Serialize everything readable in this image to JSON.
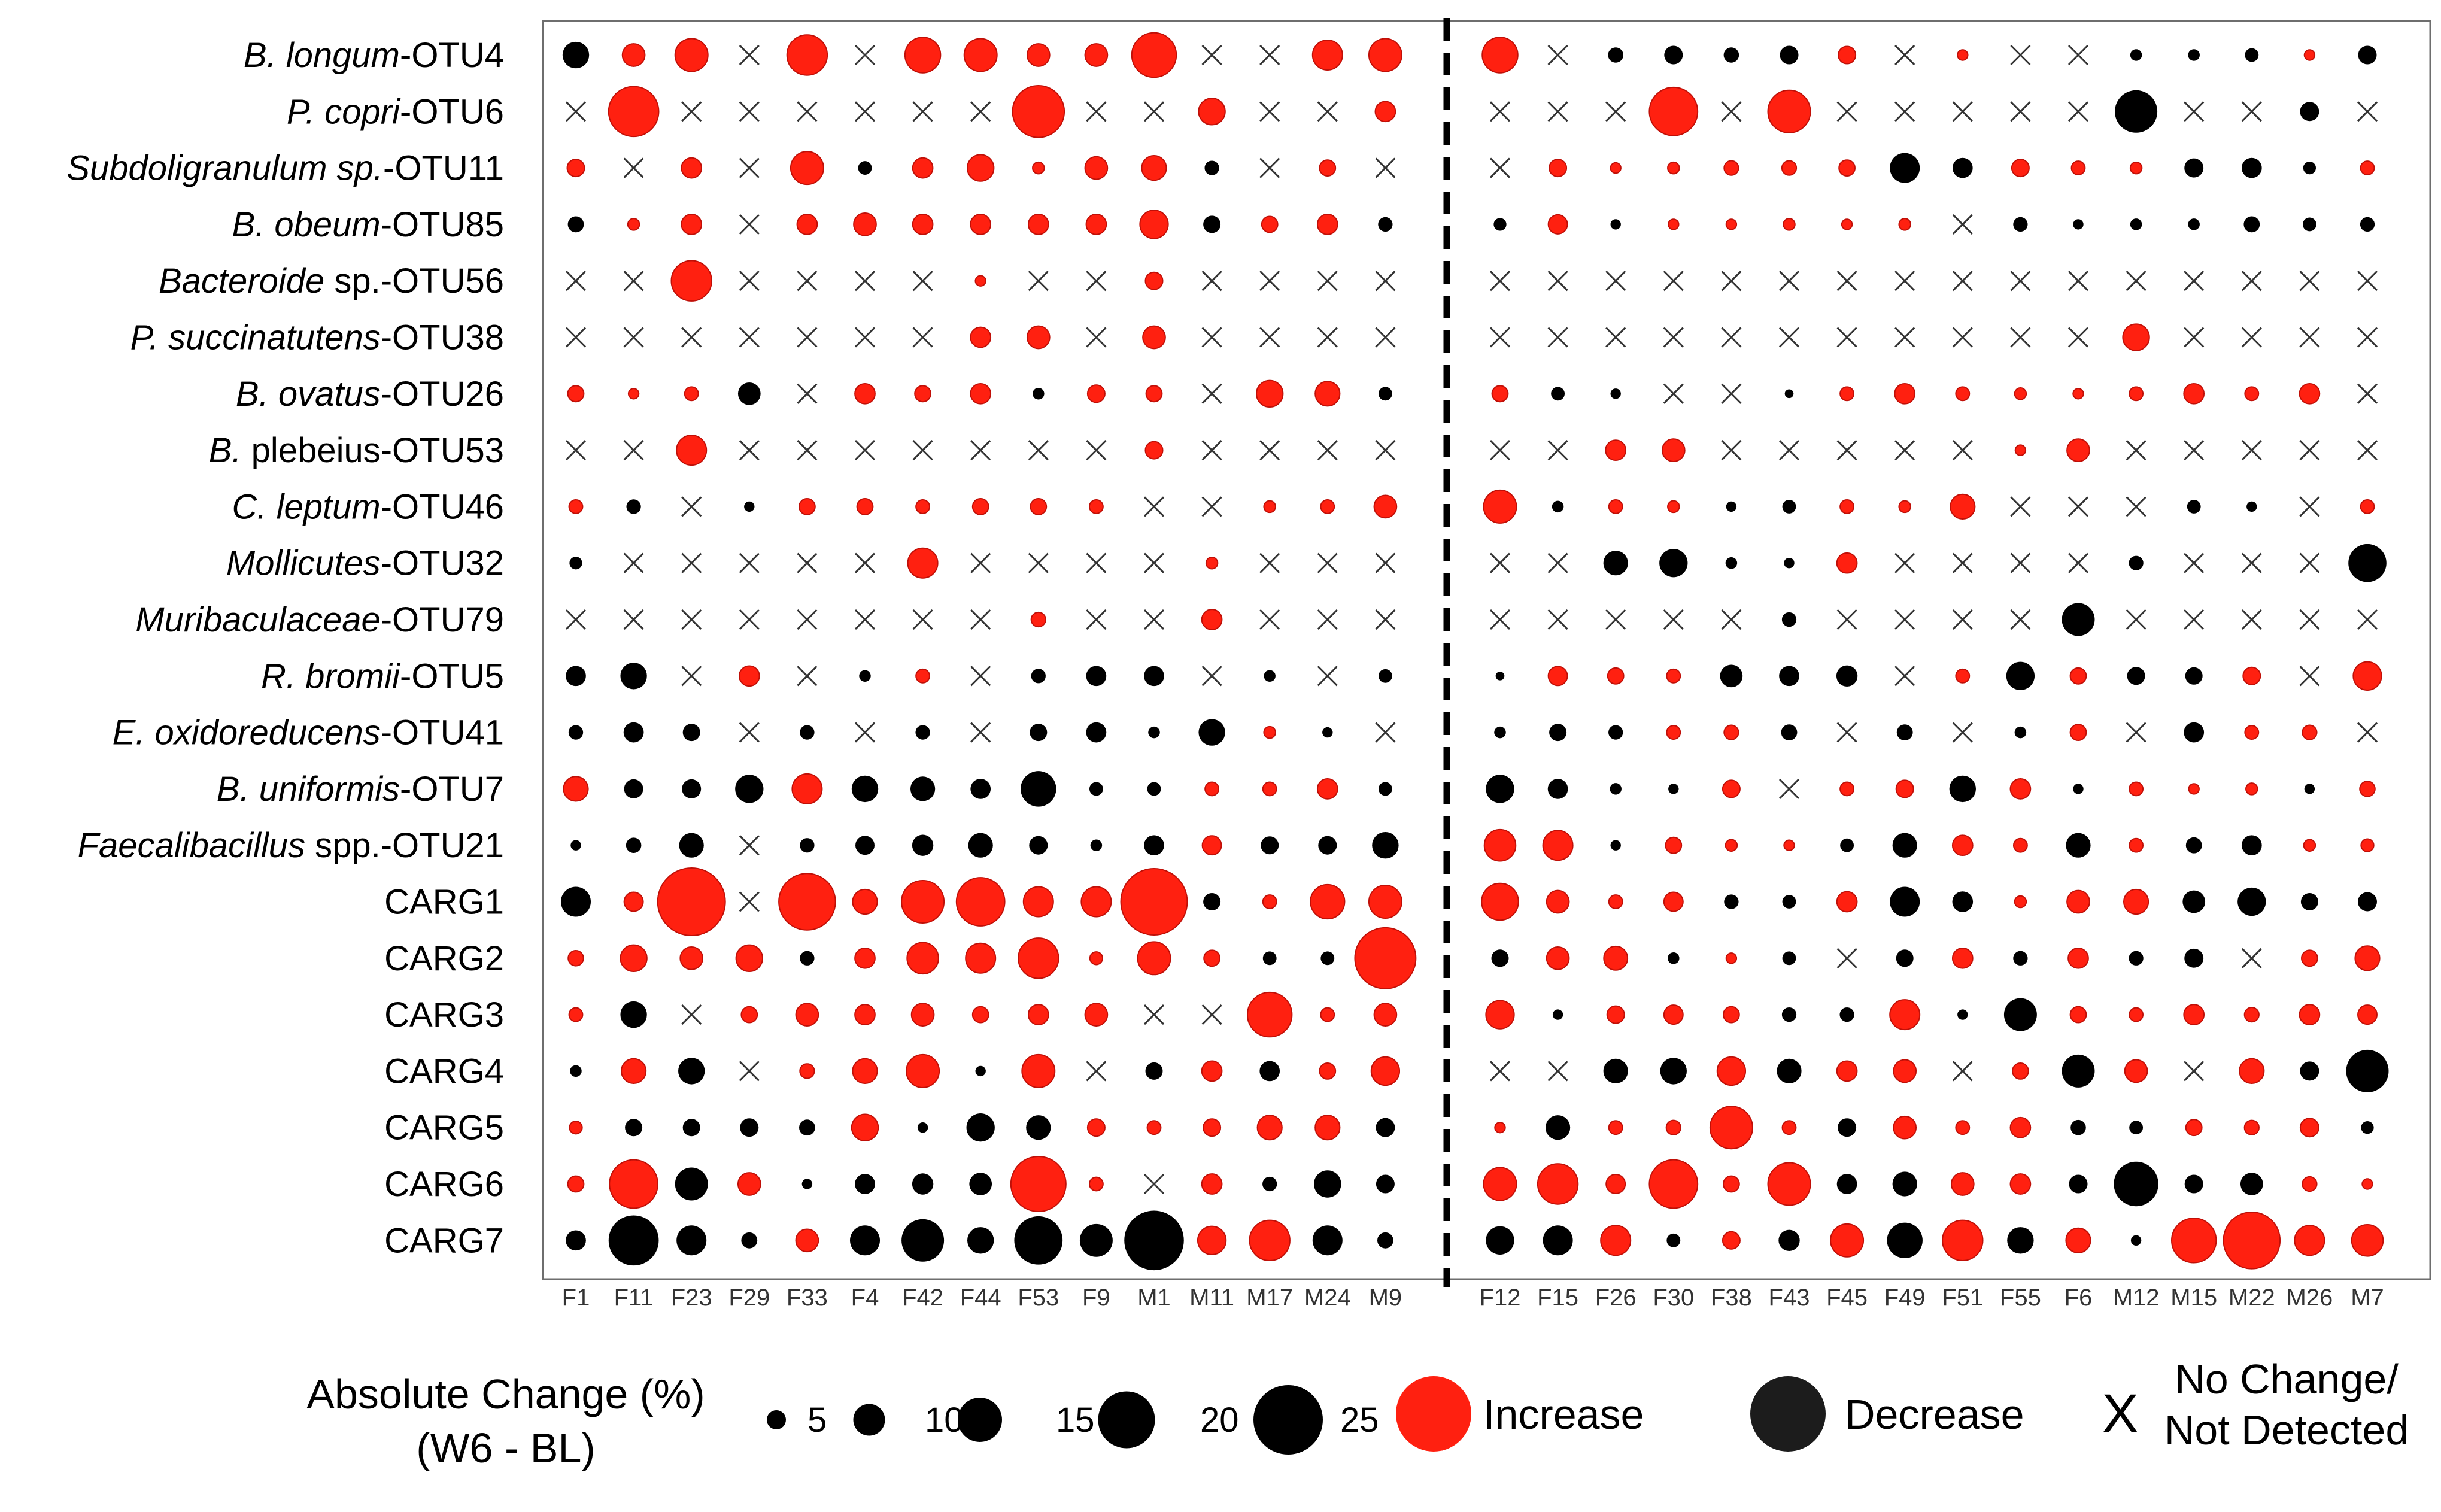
{
  "chart_data": {
    "type": "bubble-matrix",
    "rows": [
      {
        "parts": [
          {
            "t": "B. longum",
            "i": true
          },
          {
            "t": "-OTU4",
            "i": false
          }
        ]
      },
      {
        "parts": [
          {
            "t": "P. copri",
            "i": true
          },
          {
            "t": "-OTU6",
            "i": false
          }
        ]
      },
      {
        "parts": [
          {
            "t": "Subdoligranulum sp.",
            "i": true
          },
          {
            "t": "-OTU11",
            "i": false
          }
        ]
      },
      {
        "parts": [
          {
            "t": "B. obeum",
            "i": true
          },
          {
            "t": "-OTU85",
            "i": false
          }
        ]
      },
      {
        "parts": [
          {
            "t": "Bacteroide",
            "i": true
          },
          {
            "t": " sp.-OTU56",
            "i": false
          }
        ]
      },
      {
        "parts": [
          {
            "t": "P. succinatutens",
            "i": true
          },
          {
            "t": "-OTU38",
            "i": false
          }
        ]
      },
      {
        "parts": [
          {
            "t": "B. ovatus",
            "i": true
          },
          {
            "t": "-OTU26",
            "i": false
          }
        ]
      },
      {
        "parts": [
          {
            "t": "B.",
            "i": true
          },
          {
            "t": " plebeius-OTU53",
            "i": false
          }
        ]
      },
      {
        "parts": [
          {
            "t": "C. leptum",
            "i": true
          },
          {
            "t": "-OTU46",
            "i": false
          }
        ]
      },
      {
        "parts": [
          {
            "t": "Mollicutes",
            "i": true
          },
          {
            "t": "-OTU32",
            "i": false
          }
        ]
      },
      {
        "parts": [
          {
            "t": "Muribaculaceae",
            "i": true
          },
          {
            "t": "-OTU79",
            "i": false
          }
        ]
      },
      {
        "parts": [
          {
            "t": "R. bromii",
            "i": true
          },
          {
            "t": "-OTU5",
            "i": false
          }
        ]
      },
      {
        "parts": [
          {
            "t": "E. oxidoreducens",
            "i": true
          },
          {
            "t": "-OTU41",
            "i": false
          }
        ]
      },
      {
        "parts": [
          {
            "t": "B. uniformis",
            "i": true
          },
          {
            "t": "-OTU7",
            "i": false
          }
        ]
      },
      {
        "parts": [
          {
            "t": "Faecalibacillus",
            "i": true
          },
          {
            "t": " spp.-OTU21",
            "i": false
          }
        ]
      },
      {
        "parts": [
          {
            "t": "CARG1",
            "i": false
          }
        ]
      },
      {
        "parts": [
          {
            "t": "CARG2",
            "i": false
          }
        ]
      },
      {
        "parts": [
          {
            "t": "CARG3",
            "i": false
          }
        ]
      },
      {
        "parts": [
          {
            "t": "CARG4",
            "i": false
          }
        ]
      },
      {
        "parts": [
          {
            "t": "CARG5",
            "i": false
          }
        ]
      },
      {
        "parts": [
          {
            "t": "CARG6",
            "i": false
          }
        ]
      },
      {
        "parts": [
          {
            "t": "CARG7",
            "i": false
          }
        ]
      }
    ],
    "columns_group1": [
      "F1",
      "F11",
      "F23",
      "F29",
      "F33",
      "F4",
      "F42",
      "F44",
      "F53",
      "F9",
      "M1",
      "M11",
      "M17",
      "M24",
      "M9"
    ],
    "columns_group2": [
      "F12",
      "F15",
      "F26",
      "F30",
      "F38",
      "F43",
      "F45",
      "F49",
      "F51",
      "F55",
      "F6",
      "M12",
      "M15",
      "M22",
      "M26",
      "M7"
    ],
    "value_encoding": "positive = increase (red), negative = decrease (black), null = no change / not detected (X); magnitude = absolute change in percentage points",
    "values_group1": [
      [
        -3,
        2,
        5,
        null,
        8,
        null,
        6,
        5,
        2,
        2,
        10,
        null,
        null,
        4,
        5
      ],
      [
        null,
        13,
        null,
        null,
        null,
        null,
        null,
        null,
        14,
        null,
        null,
        3,
        null,
        null,
        1.5
      ],
      [
        1,
        null,
        1.5,
        null,
        5,
        -0.5,
        1.5,
        3,
        0.3,
        2,
        2.5,
        -0.6,
        null,
        0.8,
        null
      ],
      [
        -0.8,
        0.3,
        1.5,
        null,
        1.5,
        2,
        1.5,
        1.5,
        1.5,
        1.5,
        3.5,
        -1,
        0.8,
        1.5,
        -0.6
      ],
      [
        null,
        null,
        8,
        null,
        null,
        null,
        null,
        0.2,
        null,
        null,
        1,
        null,
        null,
        null,
        null
      ],
      [
        null,
        null,
        null,
        null,
        null,
        null,
        null,
        1.5,
        2,
        null,
        2,
        null,
        null,
        null,
        null
      ],
      [
        0.8,
        0.2,
        0.5,
        -2,
        null,
        1.5,
        0.8,
        1.5,
        -0.3,
        1,
        0.8,
        null,
        3,
        2.5,
        -0.5
      ],
      [
        null,
        null,
        4,
        null,
        null,
        null,
        null,
        null,
        null,
        null,
        1,
        null,
        null,
        null,
        null
      ],
      [
        0.5,
        -0.6,
        null,
        -0.2,
        0.8,
        0.8,
        0.5,
        0.8,
        0.8,
        0.5,
        null,
        null,
        0.3,
        0.5,
        2
      ],
      [
        -0.4,
        null,
        null,
        null,
        null,
        null,
        4,
        null,
        null,
        null,
        null,
        0.3,
        null,
        null,
        null
      ],
      [
        null,
        null,
        null,
        null,
        null,
        null,
        null,
        null,
        0.6,
        null,
        null,
        1.5,
        null,
        null,
        null
      ],
      [
        -1.5,
        -3,
        null,
        1.5,
        null,
        -0.3,
        0.5,
        null,
        -0.6,
        -1.5,
        -1.5,
        null,
        -0.3,
        null,
        -0.5
      ],
      [
        -0.6,
        -1.5,
        -1,
        null,
        -0.6,
        null,
        -0.6,
        null,
        -1,
        -1.5,
        -0.3,
        -3,
        0.3,
        -0.2,
        null
      ],
      [
        2.5,
        -1.3,
        -1.3,
        -3.5,
        4,
        -3,
        -2.5,
        -1.5,
        -6,
        -0.5,
        -0.5,
        0.5,
        0.5,
        1.5,
        -0.5
      ],
      [
        -0.2,
        -0.7,
        -2.5,
        null,
        -0.6,
        -1.3,
        -1.7,
        -2.5,
        -1.2,
        -0.3,
        -1.5,
        1.3,
        -1.1,
        -1.2,
        -3
      ],
      [
        -4,
        1.3,
        25,
        null,
        17,
        2.5,
        9,
        12,
        4,
        4,
        24,
        -1,
        0.5,
        5.5,
        5
      ],
      [
        0.7,
        3,
        2,
        3,
        -0.6,
        1.5,
        4.5,
        4,
        8,
        0.4,
        5,
        0.8,
        -0.5,
        -0.5,
        20
      ],
      [
        0.5,
        -3,
        null,
        0.8,
        2,
        1.5,
        2,
        0.8,
        1.5,
        2,
        null,
        null,
        10,
        0.5,
        2
      ],
      [
        -0.3,
        2.5,
        -3,
        null,
        0.6,
        2.5,
        5,
        -0.2,
        5,
        null,
        -1,
        1.5,
        -1.5,
        0.8,
        3.5
      ],
      [
        0.4,
        -1,
        -1,
        -1.2,
        -0.8,
        3,
        -0.2,
        -3.5,
        -2.5,
        1,
        0.5,
        1,
        2.5,
        2.5,
        -1.3
      ],
      [
        0.8,
        12,
        -5,
        2,
        -0.2,
        -1.5,
        -1.7,
        -2,
        16,
        0.5,
        null,
        1.5,
        -0.6,
        -3.2,
        -1.2
      ],
      [
        -1.5,
        -13,
        -4,
        -0.8,
        2,
        -4,
        -9,
        -3,
        -12,
        -5,
        -19,
        3.5,
        8,
        -4,
        -0.8
      ]
    ],
    "values_group2": [
      [
        6,
        null,
        -0.7,
        -1.2,
        -0.7,
        -1.2,
        1,
        null,
        0.2,
        null,
        null,
        -0.3,
        -0.3,
        -0.5,
        0.2,
        -1.2
      ],
      [
        null,
        null,
        null,
        12,
        null,
        9,
        null,
        null,
        null,
        null,
        null,
        -9,
        null,
        null,
        -1.3,
        null
      ],
      [
        null,
        1,
        0.2,
        0.3,
        0.6,
        0.6,
        0.8,
        -4,
        -1.5,
        1,
        0.5,
        0.3,
        -1.3,
        -1.5,
        -0.4,
        0.5
      ],
      [
        -0.4,
        1.3,
        -0.2,
        0.2,
        0.2,
        0.3,
        0.2,
        0.3,
        null,
        -0.6,
        -0.2,
        -0.3,
        -0.3,
        -0.8,
        -0.5,
        -0.6
      ],
      [
        null,
        null,
        null,
        null,
        null,
        null,
        null,
        null,
        null,
        null,
        null,
        null,
        null,
        null,
        null,
        null
      ],
      [
        null,
        null,
        null,
        null,
        null,
        null,
        null,
        null,
        null,
        null,
        null,
        3,
        null,
        null,
        null,
        null
      ],
      [
        0.8,
        -0.5,
        -0.2,
        null,
        null,
        -0.1,
        0.5,
        1.5,
        0.5,
        0.3,
        0.2,
        0.5,
        1.5,
        0.5,
        1.5,
        null
      ],
      [
        null,
        null,
        1.5,
        2,
        null,
        null,
        null,
        null,
        null,
        0.2,
        2,
        null,
        null,
        null,
        null,
        null
      ],
      [
        5,
        -0.3,
        0.5,
        0.3,
        -0.2,
        -0.5,
        0.5,
        0.3,
        2.5,
        null,
        null,
        null,
        -0.5,
        -0.2,
        null,
        0.5
      ],
      [
        null,
        null,
        -2.5,
        -3.5,
        -0.3,
        -0.2,
        1.5,
        null,
        null,
        null,
        null,
        -0.6,
        null,
        null,
        null,
        -7
      ],
      [
        null,
        null,
        null,
        null,
        null,
        -0.6,
        null,
        null,
        null,
        null,
        -5,
        null,
        null,
        null,
        null,
        null
      ],
      [
        -0.1,
        1.3,
        0.8,
        0.5,
        -2,
        -1.5,
        -1.7,
        null,
        0.5,
        -3.5,
        0.8,
        -1.1,
        -1,
        1,
        null,
        3.5
      ],
      [
        -0.3,
        -1,
        -0.6,
        0.5,
        0.6,
        -0.8,
        null,
        -0.8,
        null,
        -0.3,
        0.8,
        null,
        -1.5,
        0.5,
        0.6,
        null
      ],
      [
        -3.5,
        -1.5,
        -0.3,
        -0.2,
        1,
        null,
        0.5,
        1,
        -3,
        1.5,
        -0.2,
        0.5,
        0.2,
        0.3,
        -0.2,
        0.7
      ],
      [
        4.5,
        4,
        -0.2,
        0.8,
        0.3,
        0.2,
        -0.5,
        -2.5,
        1.5,
        0.5,
        -2.5,
        0.5,
        -0.8,
        -1.5,
        0.3,
        0.4
      ],
      [
        6.5,
        2,
        0.5,
        1.3,
        -0.6,
        -0.5,
        1.5,
        -4,
        -1.6,
        0.3,
        2,
        2.5,
        -2,
        -3.5,
        -1,
        -1.3
      ],
      [
        -1,
        2,
        2.3,
        -0.3,
        0.2,
        -0.5,
        null,
        -1,
        1.5,
        -0.6,
        1.5,
        -0.6,
        -1.3,
        null,
        0.8,
        2.5
      ],
      [
        3.5,
        -0.2,
        1,
        1.3,
        0.8,
        -0.6,
        -0.6,
        4,
        -0.2,
        -5,
        0.8,
        0.5,
        1.5,
        0.6,
        1.5,
        1.3
      ],
      [
        null,
        null,
        -2.5,
        -3,
        3.5,
        -2.5,
        1.5,
        2,
        null,
        0.8,
        -5,
        2,
        null,
        2.5,
        -1.3,
        -9
      ],
      [
        0.2,
        -2.5,
        0.5,
        0.6,
        9,
        0.5,
        -1.2,
        2,
        0.5,
        1.5,
        -0.7,
        -0.5,
        0.8,
        0.6,
        1.2,
        -0.4
      ],
      [
        5,
        8,
        1.3,
        12,
        0.8,
        9,
        -1.5,
        -2.5,
        2,
        1.5,
        -1.2,
        -10,
        -1.2,
        -2,
        0.6,
        0.2
      ],
      [
        -3.5,
        -4,
        4,
        -0.5,
        1,
        -1.7,
        5,
        -6,
        8,
        -3,
        2.5,
        -0.2,
        10,
        17,
        4,
        4.5
      ]
    ],
    "legend": {
      "size_title_line1": "Absolute Change (%)",
      "size_title_line2": "(W6 - BL)",
      "size_values": [
        5,
        10,
        15,
        20,
        25
      ],
      "increase_label": "Increase",
      "decrease_label": "Decrease",
      "nochange_symbol": "X",
      "nochange_label_line1": "No Change/",
      "nochange_label_line2": "Not Detected"
    },
    "colors": {
      "increase": "#ff2010",
      "increase_stroke": "#c01008",
      "decrease": "#000000",
      "legend_decrease": "#1c1c1c",
      "x_mark": "#333333"
    }
  }
}
